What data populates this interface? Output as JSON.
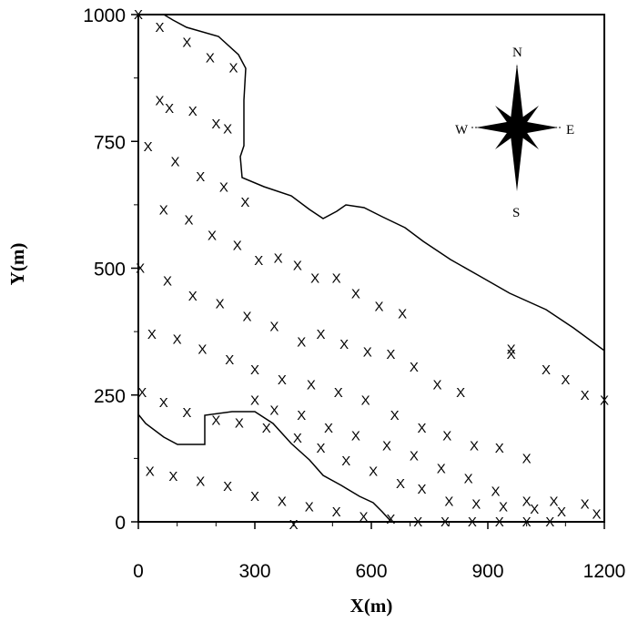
{
  "chart_data": {
    "type": "scatter",
    "title": "",
    "xlabel": "X(m)",
    "ylabel": "Y(m)",
    "xlim": [
      0,
      1200
    ],
    "ylim": [
      0,
      1000
    ],
    "x_ticks": [
      "0",
      "300",
      "600",
      "900",
      "1200"
    ],
    "y_ticks": [
      "0",
      "250",
      "500",
      "750",
      "1000"
    ],
    "grid": false,
    "marker_symbol": "X",
    "points": [
      [
        0,
        1000
      ],
      [
        55,
        975
      ],
      [
        125,
        945
      ],
      [
        185,
        915
      ],
      [
        245,
        895
      ],
      [
        55,
        830
      ],
      [
        80,
        815
      ],
      [
        140,
        810
      ],
      [
        200,
        785
      ],
      [
        230,
        775
      ],
      [
        25,
        740
      ],
      [
        95,
        710
      ],
      [
        160,
        680
      ],
      [
        220,
        660
      ],
      [
        275,
        630
      ],
      [
        65,
        615
      ],
      [
        130,
        595
      ],
      [
        190,
        565
      ],
      [
        255,
        545
      ],
      [
        310,
        515
      ],
      [
        360,
        520
      ],
      [
        410,
        505
      ],
      [
        455,
        480
      ],
      [
        510,
        480
      ],
      [
        560,
        450
      ],
      [
        620,
        425
      ],
      [
        680,
        410
      ],
      [
        5,
        500
      ],
      [
        75,
        475
      ],
      [
        140,
        445
      ],
      [
        210,
        430
      ],
      [
        280,
        405
      ],
      [
        350,
        385
      ],
      [
        420,
        355
      ],
      [
        470,
        370
      ],
      [
        530,
        350
      ],
      [
        590,
        335
      ],
      [
        650,
        330
      ],
      [
        710,
        305
      ],
      [
        770,
        270
      ],
      [
        830,
        255
      ],
      [
        35,
        370
      ],
      [
        100,
        360
      ],
      [
        165,
        340
      ],
      [
        235,
        320
      ],
      [
        300,
        300
      ],
      [
        370,
        280
      ],
      [
        445,
        270
      ],
      [
        515,
        255
      ],
      [
        585,
        240
      ],
      [
        660,
        210
      ],
      [
        730,
        185
      ],
      [
        795,
        170
      ],
      [
        865,
        150
      ],
      [
        930,
        145
      ],
      [
        1000,
        125
      ],
      [
        10,
        255
      ],
      [
        65,
        235
      ],
      [
        125,
        215
      ],
      [
        200,
        200
      ],
      [
        260,
        195
      ],
      [
        330,
        185
      ],
      [
        410,
        165
      ],
      [
        470,
        145
      ],
      [
        535,
        120
      ],
      [
        605,
        100
      ],
      [
        675,
        75
      ],
      [
        730,
        65
      ],
      [
        800,
        40
      ],
      [
        870,
        35
      ],
      [
        940,
        30
      ],
      [
        1020,
        25
      ],
      [
        1090,
        20
      ],
      [
        1180,
        15
      ],
      [
        300,
        240
      ],
      [
        350,
        220
      ],
      [
        420,
        210
      ],
      [
        490,
        185
      ],
      [
        560,
        170
      ],
      [
        640,
        150
      ],
      [
        710,
        130
      ],
      [
        780,
        105
      ],
      [
        850,
        85
      ],
      [
        920,
        60
      ],
      [
        1000,
        40
      ],
      [
        1070,
        40
      ],
      [
        1150,
        35
      ],
      [
        30,
        100
      ],
      [
        90,
        90
      ],
      [
        160,
        80
      ],
      [
        230,
        70
      ],
      [
        300,
        50
      ],
      [
        370,
        40
      ],
      [
        440,
        30
      ],
      [
        510,
        20
      ],
      [
        580,
        10
      ],
      [
        650,
        5
      ],
      [
        720,
        0
      ],
      [
        790,
        0
      ],
      [
        860,
        0
      ],
      [
        930,
        0
      ],
      [
        1000,
        0
      ],
      [
        1060,
        0
      ],
      [
        400,
        -5
      ],
      [
        960,
        330
      ],
      [
        960,
        340
      ],
      [
        1050,
        300
      ],
      [
        1100,
        280
      ],
      [
        1150,
        250
      ],
      [
        1200,
        240
      ]
    ],
    "annotations": {
      "compass": [
        "N",
        "E",
        "S",
        "W"
      ]
    }
  }
}
